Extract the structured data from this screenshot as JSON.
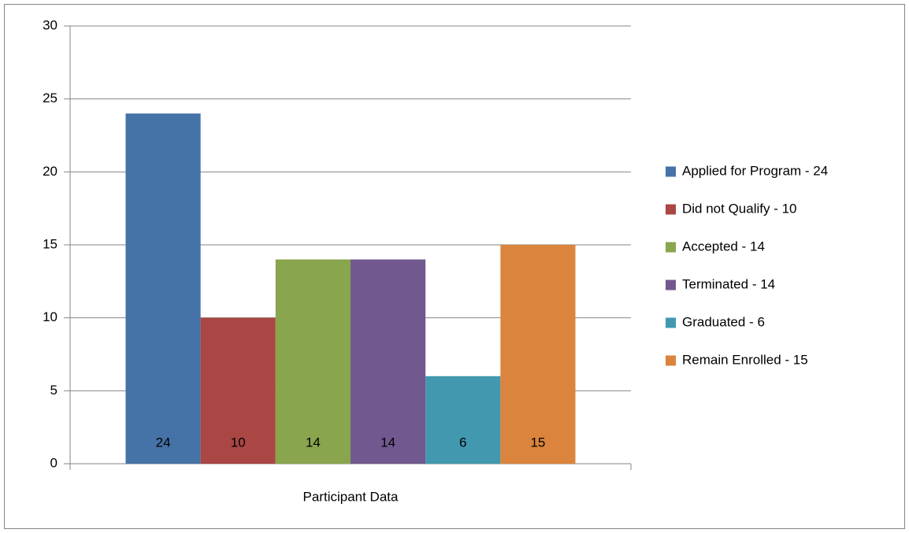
{
  "chart_data": {
    "type": "bar",
    "categories": [
      "Participant Data"
    ],
    "series": [
      {
        "name": "Applied for Program - 24",
        "color": "#4572a7",
        "values": [
          24
        ]
      },
      {
        "name": "Did not Qualify - 10",
        "color": "#aa4643",
        "values": [
          10
        ]
      },
      {
        "name": "Accepted - 14",
        "color": "#89a54e",
        "values": [
          14
        ]
      },
      {
        "name": "Terminated - 14",
        "color": "#71588f",
        "values": [
          14
        ]
      },
      {
        "name": "Graduated - 6",
        "color": "#4198af",
        "values": [
          6
        ]
      },
      {
        "name": "Remain Enrolled - 15",
        "color": "#db843d",
        "values": [
          15
        ]
      }
    ],
    "ylim": [
      0,
      30
    ],
    "yticks": [
      0,
      5,
      10,
      15,
      20,
      25,
      30
    ],
    "grid": true,
    "legend": "right"
  }
}
